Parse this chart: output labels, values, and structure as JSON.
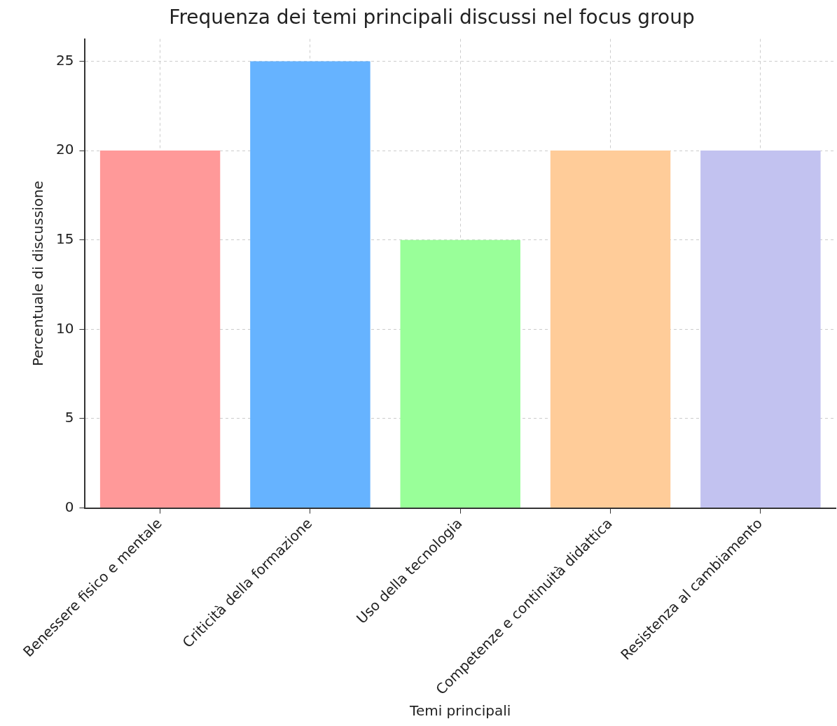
{
  "chart_data": {
    "type": "bar",
    "title": "Frequenza dei temi principali discussi nel focus group",
    "xlabel": "Temi principali",
    "ylabel": "Percentuale di discussione",
    "categories": [
      "Benessere fisico e mentale",
      "Criticità della formazione",
      "Uso della tecnologia",
      "Competenze e continuità didattica",
      "Resistenza al cambiamento"
    ],
    "values": [
      20,
      25,
      15,
      20,
      20
    ],
    "colors": [
      "#ff9999",
      "#66b3ff",
      "#99ff99",
      "#ffcc99",
      "#c2c2f0"
    ],
    "ylim": [
      0,
      26.25
    ],
    "yticks": [
      0,
      5,
      10,
      15,
      20,
      25
    ],
    "grid": true
  }
}
